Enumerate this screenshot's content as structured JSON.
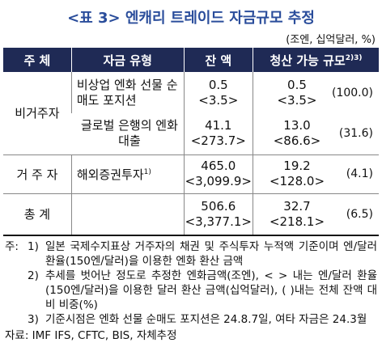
{
  "header": {
    "title": "<표 3> 엔캐리 트레이드 자금규모 추정",
    "unit": "(조엔, 십억달러, %)"
  },
  "table": {
    "columns": [
      "주 체",
      "자금 유형",
      "잔 액",
      "청산 가능 규모"
    ],
    "columns_sup": "2)3)",
    "rows": [
      {
        "entity": "비거주자",
        "type": "비상업 엔화 선물 순매도 포지션",
        "balance": "0.5",
        "balance_usd": "<3.5>",
        "liquidation": "0.5",
        "liquidation_usd": "<3.5>",
        "share": "(100.0)"
      },
      {
        "type": "글로벌 은행의 엔화 대출",
        "balance": "41.1",
        "balance_usd": "<273.7>",
        "liquidation": "13.0",
        "liquidation_usd": "<86.6>",
        "share": "(31.6)"
      },
      {
        "entity": "거 주 자",
        "type": "해외증권투자",
        "type_sup": "1)",
        "balance": "465.0",
        "balance_usd": "<3,099.9>",
        "liquidation": "19.2",
        "liquidation_usd": "<128.0>",
        "share": "(4.1)"
      },
      {
        "entity": "총 계",
        "balance": "506.6",
        "balance_usd": "<3,377.1>",
        "liquidation": "32.7",
        "liquidation_usd": "<218.1>",
        "share": "(6.5)"
      }
    ]
  },
  "notes": {
    "prefix": "주:",
    "items": [
      {
        "marker": "1)",
        "text": "일본 국제수지표상 거주자의 채권 및 주식투자 누적액 기준이며 엔/달러 환율(150엔/달러)을 이용한 엔화 환산 금액"
      },
      {
        "marker": "2)",
        "text": "추세를 벗어난 정도로 추정한 엔화금액(조엔), < > 내는 엔/달러 환율(150엔/달러)을 이용한 달러 환산 금액(십억달러), ( )내는 전체 잔액 대비 비중(%)"
      },
      {
        "marker": "3)",
        "text": "기준시점은 엔화 선물 순매도 포지션은 24.8.7일, 여타 자금은 24.3월"
      }
    ]
  },
  "source": "자료: IMF IFS, CFTC, BIS, 자체추정"
}
